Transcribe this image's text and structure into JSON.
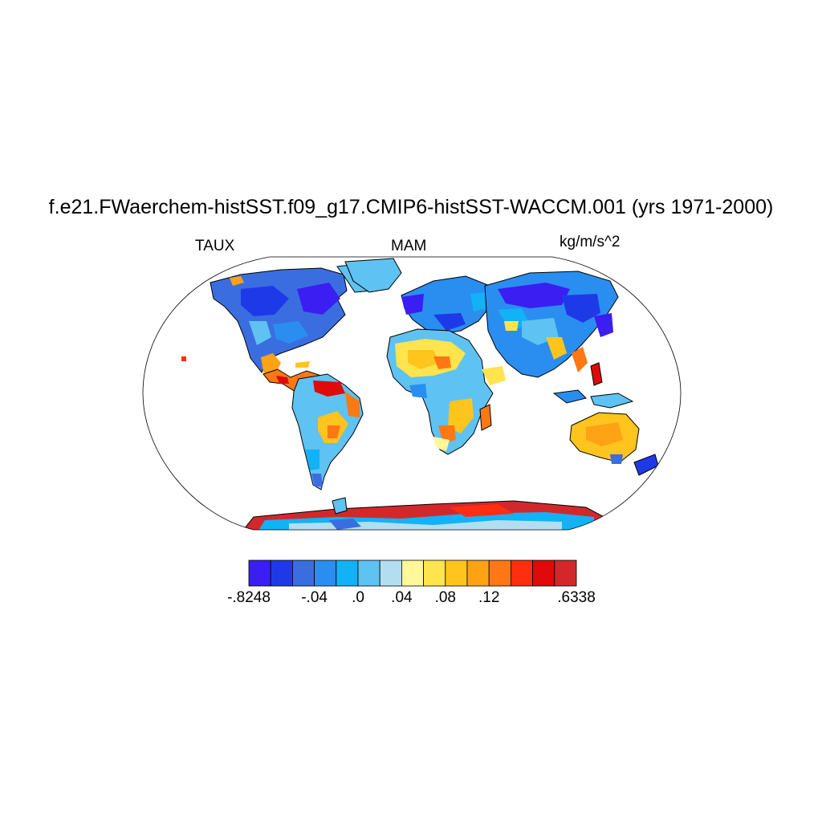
{
  "title": "f.e21.FWaerchem-histSST.f09_g17.CMIP6-histSST-WACCM.001 (yrs 1971-2000)",
  "left_label": "TAUX",
  "center_label": "MAM",
  "right_label": "kg/m/s^2",
  "colorbar": {
    "colors": [
      "#3a1ef2",
      "#1e3ae8",
      "#3a6ee0",
      "#2a8ef0",
      "#12b2f6",
      "#5ec2f2",
      "#b2def0",
      "#fff79a",
      "#ffe44e",
      "#ffc41e",
      "#ffa214",
      "#ff7814",
      "#ff2e10",
      "#e00a0a",
      "#d2282c"
    ],
    "tick_labels": [
      {
        "text": "-.8248",
        "index": 0
      },
      {
        "text": "-.04",
        "index": 3
      },
      {
        "text": ".0",
        "index": 5
      },
      {
        "text": ".04",
        "index": 7
      },
      {
        "text": ".08",
        "index": 9
      },
      {
        "text": ".12",
        "index": 11
      },
      {
        "text": ".6338",
        "index": 15
      }
    ]
  }
}
